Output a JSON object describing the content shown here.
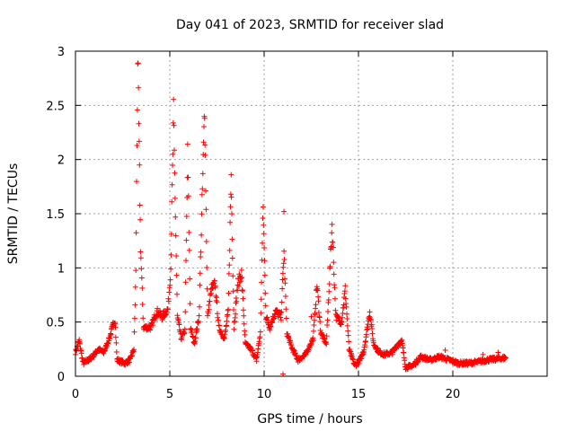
{
  "chart_data": {
    "type": "scatter",
    "title": "Day 041 of 2023, SRMTID for receiver slad",
    "xlabel": "GPS time / hours",
    "ylabel": "SRMTID / TECUs",
    "xlim": [
      0,
      25
    ],
    "ylim": [
      0,
      3
    ],
    "x_ticks": [
      0,
      5,
      10,
      15,
      20
    ],
    "x_tick_labels": [
      "0",
      "5",
      "10",
      "15",
      "20"
    ],
    "y_ticks": [
      0,
      0.5,
      1,
      1.5,
      2,
      2.5,
      3
    ],
    "y_tick_labels": [
      "0",
      "0.5",
      "1",
      "1.5",
      "2",
      "2.5",
      "3"
    ],
    "grid": true,
    "marker": "plus",
    "color": "#ff0000",
    "series": [
      {
        "name": "SRMTID",
        "profile": [
          [
            0.0,
            0.22
          ],
          [
            0.2,
            0.33
          ],
          [
            0.4,
            0.12
          ],
          [
            0.7,
            0.15
          ],
          [
            1.0,
            0.2
          ],
          [
            1.2,
            0.25
          ],
          [
            1.5,
            0.22
          ],
          [
            1.8,
            0.35
          ],
          [
            2.0,
            0.48
          ],
          [
            2.1,
            0.52
          ],
          [
            2.2,
            0.15
          ],
          [
            2.6,
            0.12
          ],
          [
            2.9,
            0.15
          ],
          [
            3.1,
            0.25
          ],
          [
            3.2,
            0.95
          ],
          [
            3.3,
            2.95
          ],
          [
            3.45,
            1.2
          ],
          [
            3.6,
            0.45
          ],
          [
            4.0,
            0.45
          ],
          [
            4.3,
            0.6
          ],
          [
            4.6,
            0.55
          ],
          [
            4.9,
            0.62
          ],
          [
            5.05,
            1.0
          ],
          [
            5.2,
            2.42
          ],
          [
            5.4,
            0.55
          ],
          [
            5.6,
            0.35
          ],
          [
            5.8,
            0.42
          ],
          [
            5.95,
            2.05
          ],
          [
            6.1,
            0.45
          ],
          [
            6.3,
            0.3
          ],
          [
            6.55,
            0.55
          ],
          [
            6.85,
            2.5
          ],
          [
            7.0,
            0.55
          ],
          [
            7.2,
            0.8
          ],
          [
            7.4,
            0.85
          ],
          [
            7.6,
            0.45
          ],
          [
            7.9,
            0.35
          ],
          [
            8.1,
            0.6
          ],
          [
            8.25,
            1.85
          ],
          [
            8.4,
            0.45
          ],
          [
            8.6,
            0.85
          ],
          [
            8.8,
            0.95
          ],
          [
            9.0,
            0.3
          ],
          [
            9.3,
            0.25
          ],
          [
            9.6,
            0.15
          ],
          [
            9.8,
            0.4
          ],
          [
            9.95,
            1.55
          ],
          [
            10.1,
            0.55
          ],
          [
            10.3,
            0.45
          ],
          [
            10.6,
            0.6
          ],
          [
            10.9,
            0.55
          ],
          [
            11.05,
            1.15
          ],
          [
            11.2,
            0.4
          ],
          [
            11.5,
            0.25
          ],
          [
            11.8,
            0.15
          ],
          [
            12.2,
            0.2
          ],
          [
            12.6,
            0.35
          ],
          [
            12.8,
            0.85
          ],
          [
            13.0,
            0.4
          ],
          [
            13.3,
            0.3
          ],
          [
            13.6,
            1.4
          ],
          [
            13.8,
            0.55
          ],
          [
            14.1,
            0.5
          ],
          [
            14.3,
            0.8
          ],
          [
            14.5,
            0.25
          ],
          [
            14.8,
            0.1
          ],
          [
            15.1,
            0.15
          ],
          [
            15.3,
            0.25
          ],
          [
            15.6,
            0.6
          ],
          [
            15.8,
            0.3
          ],
          [
            16.1,
            0.22
          ],
          [
            16.4,
            0.2
          ],
          [
            16.8,
            0.22
          ],
          [
            17.1,
            0.3
          ],
          [
            17.3,
            0.32
          ],
          [
            17.5,
            0.08
          ],
          [
            17.9,
            0.1
          ],
          [
            18.3,
            0.18
          ],
          [
            18.8,
            0.15
          ],
          [
            19.3,
            0.18
          ],
          [
            19.8,
            0.15
          ],
          [
            20.3,
            0.12
          ],
          [
            20.8,
            0.12
          ],
          [
            21.3,
            0.13
          ],
          [
            21.8,
            0.15
          ],
          [
            22.3,
            0.16
          ],
          [
            22.8,
            0.17
          ]
        ],
        "outliers": [
          [
            11.05,
            1.52
          ],
          [
            11.0,
            0.02
          ],
          [
            12.5,
            0.55
          ],
          [
            19.6,
            0.24
          ],
          [
            21.6,
            0.2
          ],
          [
            22.4,
            0.22
          ]
        ]
      }
    ]
  }
}
